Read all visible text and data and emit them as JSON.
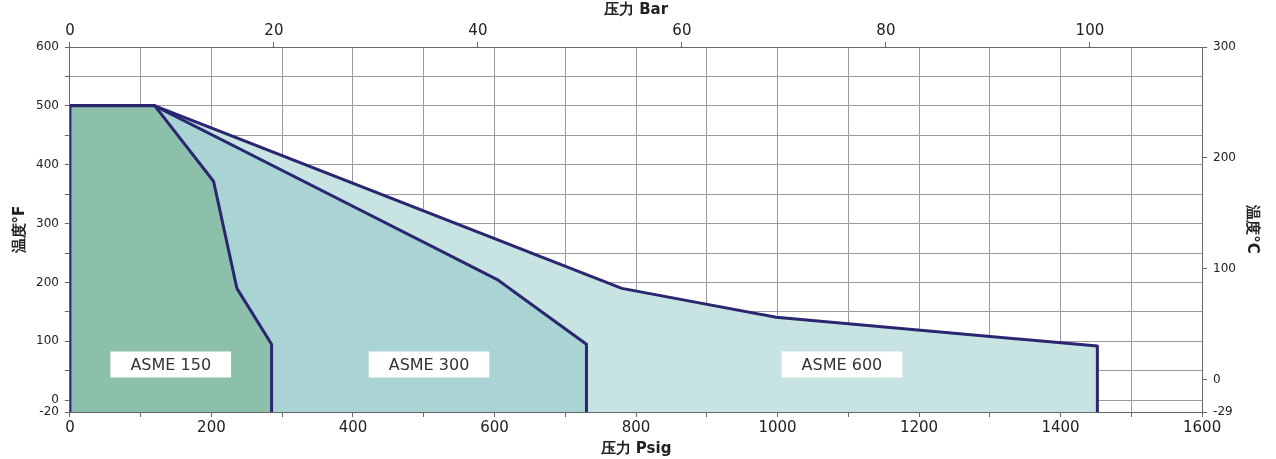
{
  "chart_data": {
    "type": "area",
    "xlabel": "压力 Psig",
    "x2label": "压力 Bar",
    "ylabel": "温度°F",
    "y2label": "温度°C",
    "xlim": [
      0,
      1600
    ],
    "xticks": [
      0,
      {
        "value": 100,
        "label": null
      },
      200,
      {
        "value": 300,
        "label": null
      },
      400,
      {
        "value": 500,
        "label": null
      },
      600,
      {
        "value": 700,
        "label": null
      },
      800,
      {
        "value": 900,
        "label": null
      },
      1000,
      {
        "value": 1100,
        "label": null
      },
      1200,
      {
        "value": 1300,
        "label": null
      },
      1400,
      {
        "value": 1500,
        "label": null
      },
      1600
    ],
    "x2lim": [
      0,
      111
    ],
    "x2ticks": [
      0,
      20,
      40,
      60,
      80,
      100
    ],
    "ylim": [
      -20,
      600
    ],
    "yticks": [
      -20,
      0,
      {
        "value": 50,
        "label": null
      },
      100,
      {
        "value": 150,
        "label": null
      },
      200,
      {
        "value": 250,
        "label": null
      },
      300,
      {
        "value": 350,
        "label": null
      },
      400,
      {
        "value": 450,
        "label": null
      },
      500,
      {
        "value": 550,
        "label": null
      },
      600
    ],
    "y2lim": [
      -29,
      300
    ],
    "y2ticks": [
      -29,
      0,
      100,
      200,
      300
    ],
    "grid": true,
    "legend": false,
    "marker": "none",
    "line_style": "solid",
    "series": [
      {
        "name": "ASME 150",
        "color": "#8cc0aa",
        "x": [
          0,
          0,
          120,
          203,
          236,
          285,
          285
        ],
        "values": [
          -20,
          500,
          500,
          372,
          190,
          95,
          -20
        ]
      },
      {
        "name": "ASME 300",
        "color": "#a9d4d3",
        "x": [
          0,
          0,
          120,
          604,
          730,
          730
        ],
        "values": [
          -20,
          500,
          500,
          205,
          95,
          -20
        ]
      },
      {
        "name": "ASME 600",
        "color": "#c8e4e2",
        "x": [
          0,
          0,
          120,
          780,
          998,
          1452,
          1452
        ],
        "values": [
          -20,
          500,
          500,
          190,
          141,
          92,
          -20
        ]
      }
    ]
  }
}
